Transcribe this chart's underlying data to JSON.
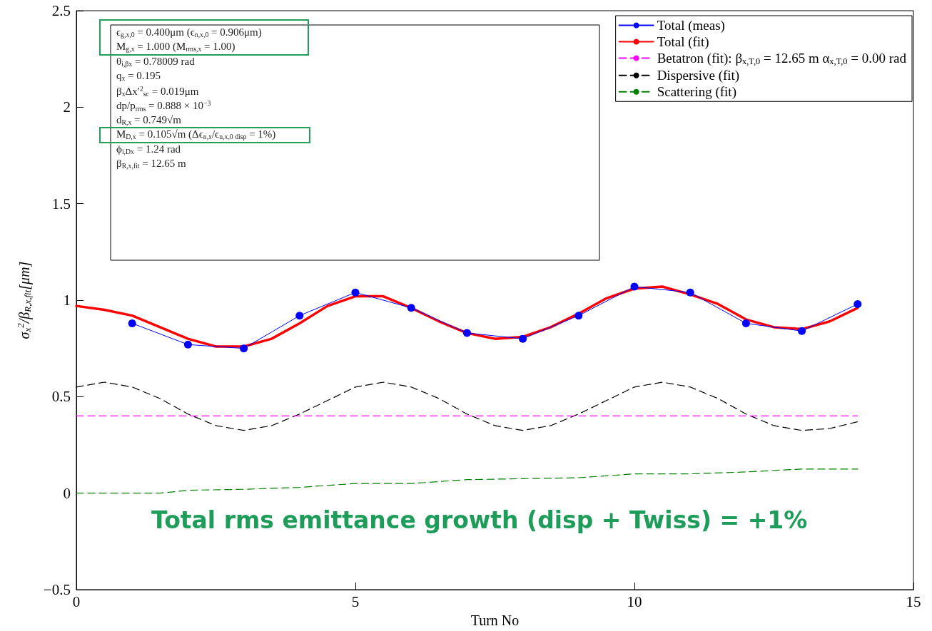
{
  "chart_data": {
    "type": "line",
    "xlabel": "Turn No",
    "ylabel": "σ$_{x}$$^{2}$/β$_{R,x,fit}$[μm]",
    "xlim": [
      0,
      15
    ],
    "xticks": [
      0,
      5,
      10,
      15
    ],
    "ylim": [
      -0.5,
      2.5
    ],
    "yticks": [
      -0.5,
      0,
      0.5,
      1,
      1.5,
      2,
      2.5
    ],
    "grid": false,
    "legend": "top right",
    "series": [
      {
        "name": "Total (meas)",
        "color": "#0000ff",
        "marker": "circle",
        "line_style": "solid",
        "x": [
          1,
          2,
          3,
          4,
          5,
          6,
          7,
          8,
          9,
          10,
          11,
          12,
          13,
          14
        ],
        "values": [
          0.88,
          0.77,
          0.75,
          0.92,
          1.04,
          0.96,
          0.83,
          0.8,
          0.92,
          1.07,
          1.04,
          0.88,
          0.84,
          0.98
        ]
      },
      {
        "name": "Total (fit)",
        "color": "#ff0000",
        "marker": "none",
        "line_style": "solid",
        "x": [
          0,
          0.5,
          1,
          1.5,
          2,
          2.5,
          3,
          3.5,
          4,
          4.5,
          5,
          5.5,
          6,
          6.5,
          7,
          7.5,
          8,
          8.5,
          9,
          9.5,
          10,
          10.5,
          11,
          11.5,
          12,
          12.5,
          13,
          13.5,
          14
        ],
        "values": [
          0.97,
          0.95,
          0.92,
          0.86,
          0.8,
          0.76,
          0.76,
          0.8,
          0.88,
          0.97,
          1.02,
          1.02,
          0.96,
          0.89,
          0.83,
          0.8,
          0.81,
          0.86,
          0.93,
          1.01,
          1.06,
          1.07,
          1.03,
          0.98,
          0.9,
          0.86,
          0.85,
          0.89,
          0.96
        ]
      },
      {
        "name": "Betatron (fit): β$_{x,T,0}$ = 12.65 m α$_{x,T,0}$ = 0.00 rad",
        "color": "#ff00ff",
        "marker": "none",
        "line_style": "dashed",
        "x": [
          0,
          14
        ],
        "values": [
          0.4,
          0.4
        ]
      },
      {
        "name": "Dispersive (fit)",
        "color": "#000000",
        "marker": "none",
        "line_style": "dashed",
        "x": [
          0,
          0.5,
          1,
          1.5,
          2,
          2.5,
          3,
          3.5,
          4,
          4.5,
          5,
          5.5,
          6,
          6.5,
          7,
          7.5,
          8,
          8.5,
          9,
          9.5,
          10,
          10.5,
          11,
          11.5,
          12,
          12.5,
          13,
          13.5,
          14
        ],
        "values": [
          0.55,
          0.575,
          0.55,
          0.49,
          0.41,
          0.35,
          0.325,
          0.35,
          0.41,
          0.48,
          0.55,
          0.575,
          0.55,
          0.49,
          0.41,
          0.35,
          0.325,
          0.35,
          0.41,
          0.48,
          0.55,
          0.575,
          0.55,
          0.49,
          0.41,
          0.35,
          0.325,
          0.335,
          0.37
        ]
      },
      {
        "name": "Scattering (fit)",
        "color": "#008000",
        "marker": "none",
        "line_style": "dashed",
        "x": [
          0,
          1,
          1.5,
          2,
          3,
          4,
          5,
          6,
          7,
          8,
          9,
          10,
          11,
          12,
          13,
          14
        ],
        "values": [
          0,
          0,
          0,
          0.015,
          0.02,
          0.03,
          0.05,
          0.05,
          0.07,
          0.075,
          0.08,
          0.1,
          0.1,
          0.11,
          0.125,
          0.125
        ]
      }
    ],
    "annotations": [
      "ϵ$_{g,x,0}$ = 0.400μm (ϵ$_{n,x,0}$ = 0.906μm)",
      "M$_{g,x}$ = 1.000 (M$_{rms,x}$ = 1.00)",
      "θ$_{i,βx}$ = 0.78009 rad",
      "q$_{x}$ = 0.195",
      "β$_{x}$Δx′$^{2}$$_{sc}$ = 0.019μm",
      "dp/p$_{rms}$ = 0.888 × 10$^{−3}$",
      "d$_{R,x}$ = 0.749√m",
      "M$_{D,x}$ = 0.105√m (Δϵ$_{n,x}$/ϵ$_{n,x,0 disp}$ = 1%)",
      "ϕ$_{i,Dx}$ = 1.24 rad",
      "β$_{R,x,fit}$ = 12.65 m",
      "Total rms emittance growth (disp + Twiss) = +1%"
    ]
  }
}
